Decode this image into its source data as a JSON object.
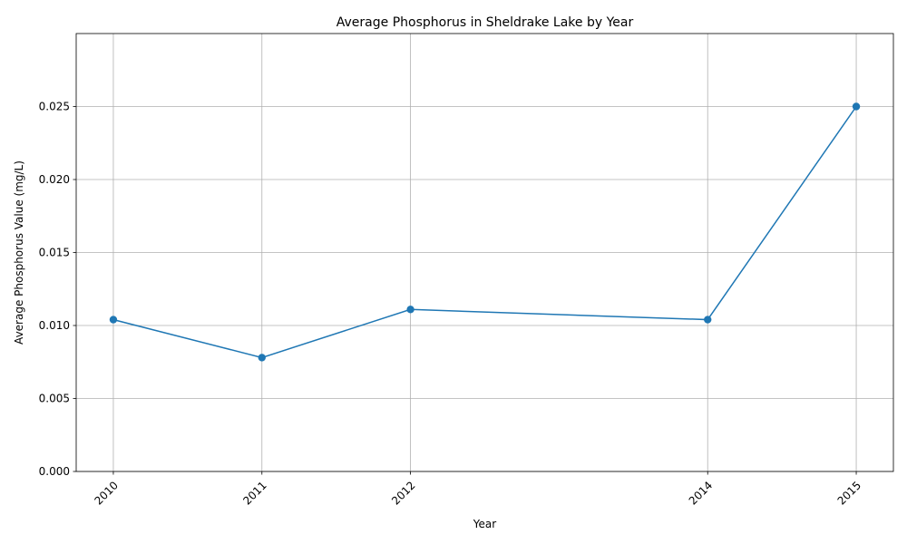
{
  "chart_data": {
    "type": "line",
    "title": "Average Phosphorus in Sheldrake Lake by Year",
    "xlabel": "Year",
    "ylabel": "Average Phosphorus Value (mg/L)",
    "x": [
      2010,
      2011,
      2012,
      2014,
      2015
    ],
    "x_tick_labels": [
      "2010",
      "2011",
      "2012",
      "2014",
      "2015"
    ],
    "series": [
      {
        "values": [
          0.0104,
          0.0078,
          0.0111,
          0.0104,
          0.025
        ]
      }
    ],
    "xlim": [
      2009.75,
      2015.25
    ],
    "ylim": [
      0,
      0.03
    ],
    "y_ticks": [
      0,
      0.005,
      0.01,
      0.015,
      0.02,
      0.025
    ],
    "y_tick_labels": [
      "0.000",
      "0.005",
      "0.010",
      "0.015",
      "0.020",
      "0.025"
    ],
    "grid": true,
    "line_color": "#1f77b4",
    "marker": "circle"
  }
}
